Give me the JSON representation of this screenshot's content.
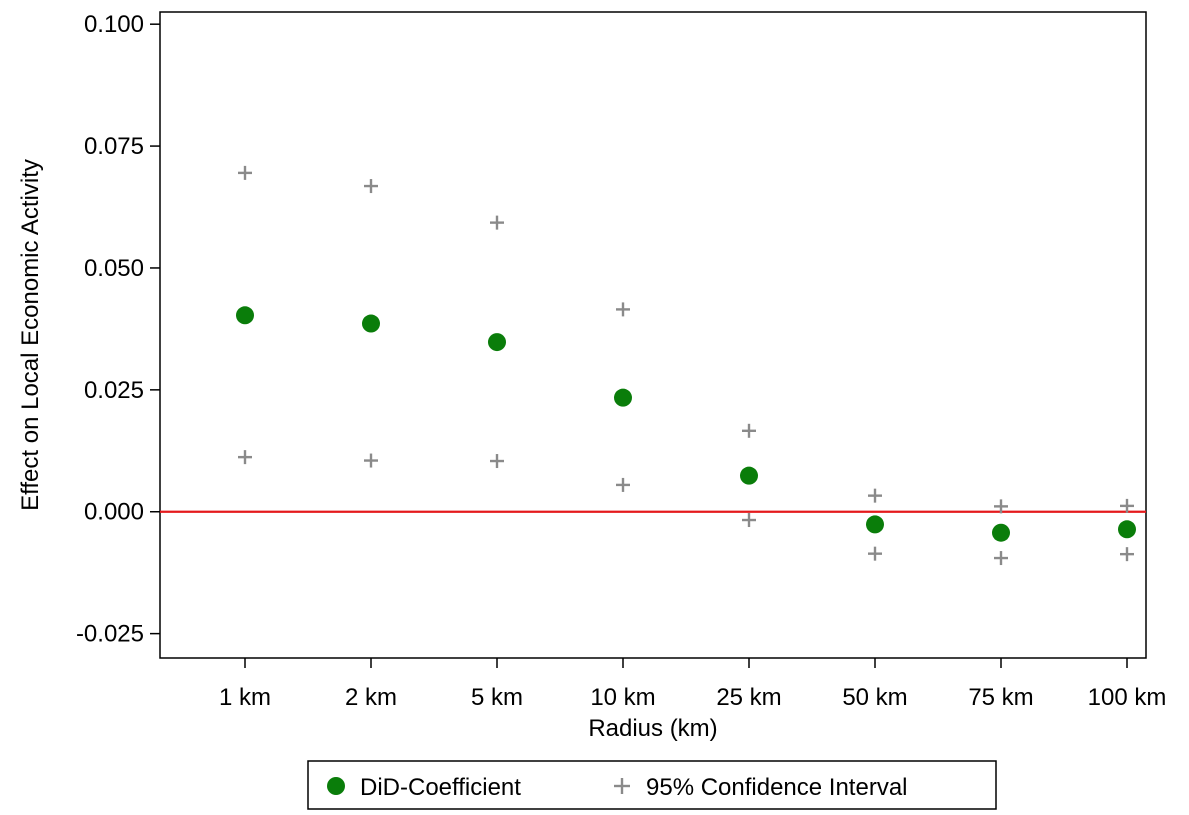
{
  "chart_data": {
    "type": "scatter",
    "xlabel": "Radius (km)",
    "ylabel": "Effect on Local Economic Activity",
    "categories": [
      "1 km",
      "2 km",
      "5 km",
      "10 km",
      "25 km",
      "50 km",
      "75 km",
      "100 km"
    ],
    "ylim": [
      -0.03,
      0.1025
    ],
    "yticks": [
      -0.025,
      0.0,
      0.025,
      0.05,
      0.075,
      0.1
    ],
    "ytick_labels": [
      "-0.025",
      "0.000",
      "0.025",
      "0.050",
      "0.075",
      "0.100"
    ],
    "reference_line": {
      "y": 0.0,
      "color": "#e41a1c"
    },
    "series": [
      {
        "name": "DiD-Coefficient",
        "marker": "circle",
        "color": "#0a7d0a",
        "values": [
          0.0403,
          0.0386,
          0.0348,
          0.0234,
          0.0074,
          -0.0026,
          -0.0043,
          -0.0036
        ]
      },
      {
        "name": "95% Confidence Interval",
        "marker": "plus",
        "color": "#8a8a8a",
        "upper": [
          0.0695,
          0.0668,
          0.0593,
          0.0415,
          0.0166,
          0.0033,
          0.0011,
          0.0012
        ],
        "lower": [
          0.0112,
          0.0105,
          0.0104,
          0.0055,
          -0.0017,
          -0.0086,
          -0.0095,
          -0.0087
        ]
      }
    ],
    "grid": false,
    "legend_position": "bottom"
  }
}
